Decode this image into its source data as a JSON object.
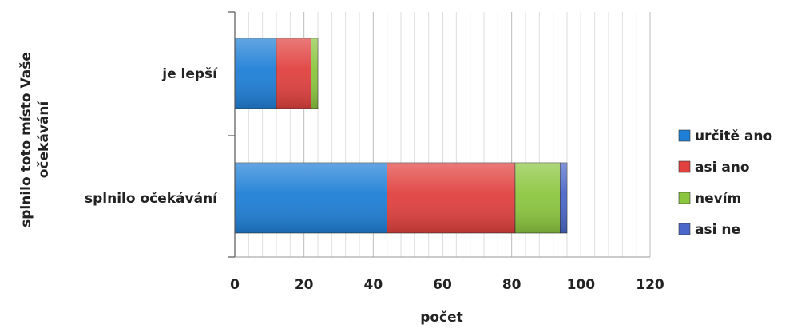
{
  "chart_data": {
    "type": "bar",
    "orientation": "horizontal",
    "stacked": true,
    "categories": [
      "je lepší",
      "splnilo očekávání"
    ],
    "series": [
      {
        "name": "určitě ano",
        "values": [
          12,
          44
        ],
        "color": "#1f7fd6"
      },
      {
        "name": "asi ano",
        "values": [
          10,
          37
        ],
        "color": "#e0413f"
      },
      {
        "name": "nevím",
        "values": [
          2,
          13
        ],
        "color": "#8cc63f"
      },
      {
        "name": "asi ne",
        "values": [
          0,
          2
        ],
        "color": "#4a67c9"
      }
    ],
    "xlabel": "počet",
    "ylabel_lines": [
      "splnilo toto místo Vaše",
      "očekávání"
    ],
    "xlim": [
      0,
      120
    ],
    "xticks": [
      0,
      20,
      40,
      60,
      80,
      100,
      120
    ],
    "grid": true,
    "legend_position": "right"
  }
}
